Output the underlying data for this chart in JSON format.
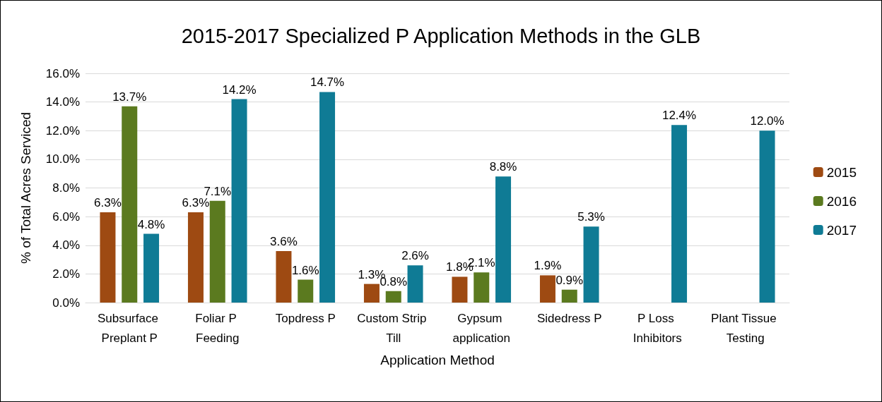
{
  "chart_data": {
    "type": "bar",
    "title": "2015-2017 Specialized P Application Methods in the GLB",
    "xlabel": "Application Method",
    "ylabel": "% of Total Acres Serviced",
    "categories": [
      "Subsurface Preplant P",
      "Foliar P Feeding",
      "Topdress P",
      "Custom Strip Till",
      "Gypsum application",
      "Sidedress P",
      "P Loss Inhibitors",
      "Plant Tissue Testing"
    ],
    "series": [
      {
        "name": "2015",
        "color": "#9e4a12",
        "values": [
          6.3,
          6.3,
          3.6,
          1.3,
          1.8,
          1.9,
          null,
          null
        ],
        "value_labels": [
          "6.3%",
          "6.3%",
          "3.6%",
          "1.3%",
          "1.8%",
          "1.9%",
          null,
          null
        ]
      },
      {
        "name": "2016",
        "color": "#5b7a1f",
        "values": [
          13.7,
          7.1,
          1.6,
          0.8,
          2.1,
          0.9,
          null,
          null
        ],
        "value_labels": [
          "13.7%",
          "7.1%",
          "1.6%",
          "0.8%",
          "2.1%",
          "0.9%",
          null,
          null
        ]
      },
      {
        "name": "2017",
        "color": "#0f7b95",
        "values": [
          4.8,
          14.2,
          14.7,
          2.6,
          8.8,
          5.3,
          12.4,
          12.0
        ],
        "value_labels": [
          "4.8%",
          "14.2%",
          "14.7%",
          "2.6%",
          "8.8%",
          "5.3%",
          "12.4%",
          "12.0%"
        ]
      }
    ],
    "ylim": [
      0,
      16
    ],
    "yticks": [
      {
        "value": 0,
        "label": "0.0%"
      },
      {
        "value": 2,
        "label": "2.0%"
      },
      {
        "value": 4,
        "label": "4.0%"
      },
      {
        "value": 6,
        "label": "6.0%"
      },
      {
        "value": 8,
        "label": "8.0%"
      },
      {
        "value": 10,
        "label": "10.0%"
      },
      {
        "value": 12,
        "label": "12.0%"
      },
      {
        "value": 14,
        "label": "14.0%"
      },
      {
        "value": 16,
        "label": "16.0%"
      }
    ],
    "grid": "y",
    "legend": "right"
  }
}
